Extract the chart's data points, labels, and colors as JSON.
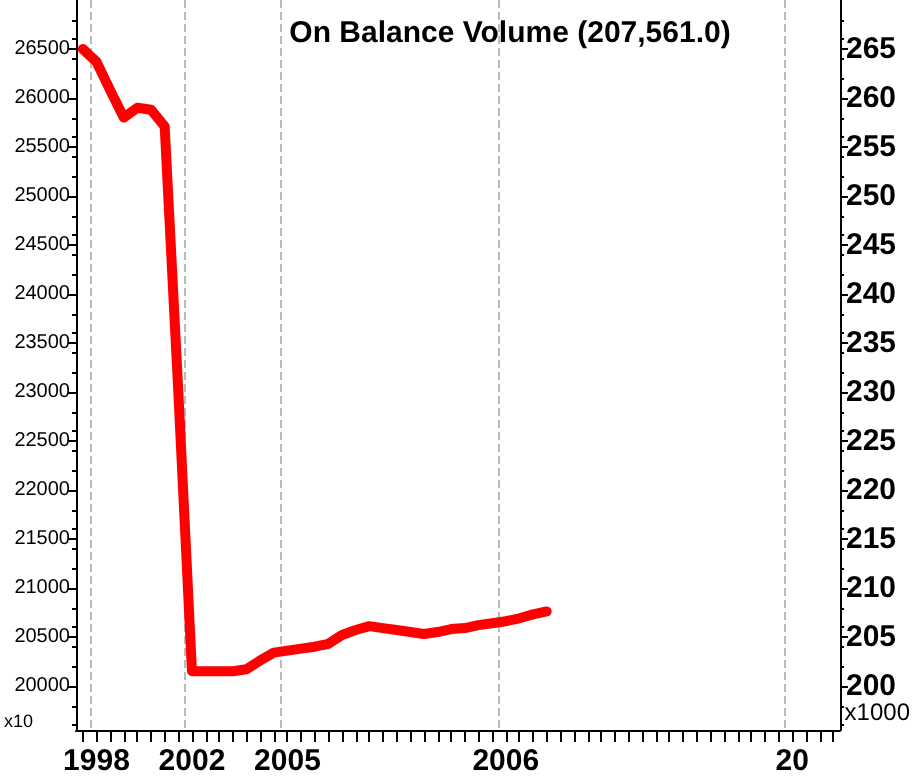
{
  "chart_data": {
    "type": "line",
    "title": "On Balance Volume (207,561.0)",
    "categories": [
      null,
      "1998",
      null,
      null,
      null,
      null,
      null,
      null,
      "2002",
      null,
      null,
      null,
      null,
      null,
      null,
      "2005",
      null,
      null,
      null,
      null,
      null,
      null,
      null,
      null,
      null,
      null,
      null,
      null,
      null,
      null,
      null,
      "2006",
      null,
      null,
      null,
      null,
      null,
      null,
      null,
      null,
      null,
      null,
      null,
      null,
      null,
      null,
      null,
      null,
      null,
      null,
      null,
      null,
      "20",
      null,
      null,
      null
    ],
    "series": [
      {
        "color": "#ff0000",
        "values": [
          26500,
          26370,
          26080,
          25800,
          25900,
          25880,
          25710,
          23000,
          20150,
          20150,
          20150,
          20150,
          20170,
          20260,
          20340,
          20360,
          20380,
          20400,
          20430,
          20520,
          20570,
          20610,
          20590,
          20570,
          20550,
          20530,
          20550,
          20580,
          20590,
          20620,
          20640,
          20660,
          20690,
          20730,
          20760,
          null,
          null,
          null,
          null,
          null,
          null,
          null,
          null,
          null,
          null,
          null,
          null,
          null,
          null,
          null,
          null,
          null,
          null,
          null,
          null,
          null
        ]
      }
    ],
    "ylim": [
      19550,
      27000
    ],
    "yticks": [
      20000,
      20500,
      21000,
      21500,
      22000,
      22500,
      23000,
      23500,
      24000,
      24500,
      25000,
      25500,
      26000,
      26500
    ],
    "y2lim": [
      195.5,
      270
    ],
    "y2ticks": [
      200,
      205,
      210,
      215,
      220,
      225,
      230,
      235,
      240,
      245,
      250,
      255,
      260,
      265
    ],
    "annotations": [
      "x10",
      "x1000"
    ],
    "grid": "x",
    "marker": "none",
    "line_style": "solid"
  }
}
